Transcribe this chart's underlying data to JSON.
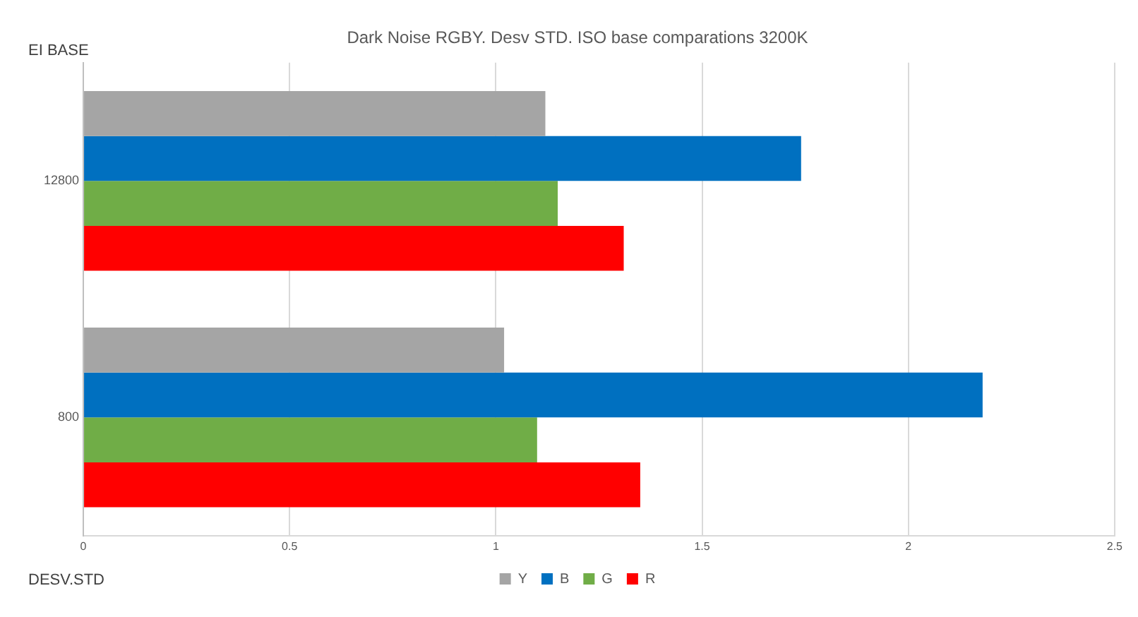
{
  "chart_data": {
    "type": "bar",
    "orientation": "horizontal",
    "title": "Dark Noise RGBY. Desv STD. ISO base comparations 3200K",
    "xlabel": "DESV.STD",
    "ylabel": "EI BASE",
    "categories": [
      "12800",
      "800"
    ],
    "series": [
      {
        "name": "Y",
        "color": "#a5a5a5",
        "values": [
          1.12,
          1.02
        ]
      },
      {
        "name": "B",
        "color": "#0070c0",
        "values": [
          1.74,
          2.18
        ]
      },
      {
        "name": "G",
        "color": "#70ad47",
        "values": [
          1.15,
          1.1
        ]
      },
      {
        "name": "R",
        "color": "#ff0000",
        "values": [
          1.31,
          1.35
        ]
      }
    ],
    "xlim": [
      0,
      2.5
    ],
    "xticks": [
      0,
      0.5,
      1,
      1.5,
      2,
      2.5
    ],
    "grid": "x",
    "legend": "bottom"
  }
}
